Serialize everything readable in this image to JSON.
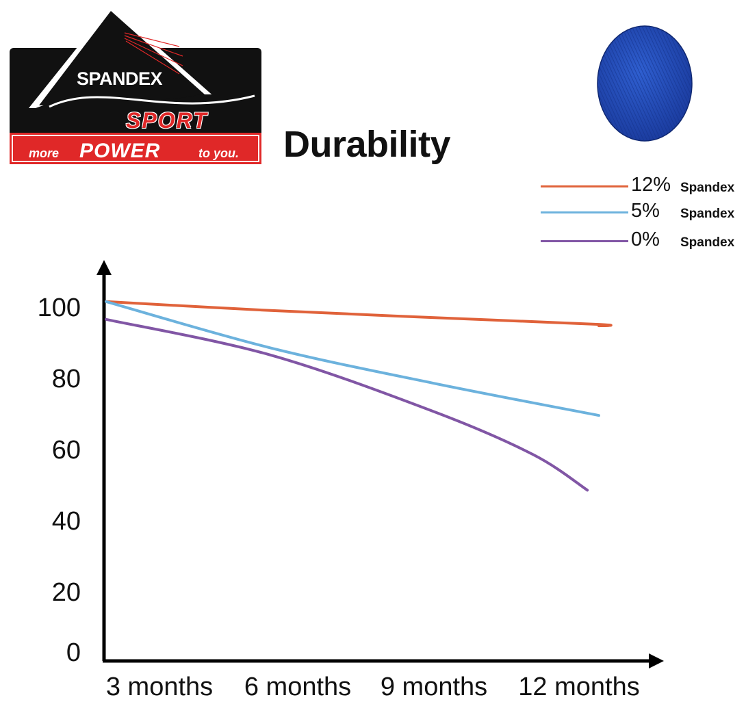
{
  "logo": {
    "brand": "SPANDEX",
    "sub": "SPORT",
    "tagline_a": "more",
    "tagline_b": "POWER",
    "tagline_c": "to you.",
    "colors": {
      "panel": "#111111",
      "band": "#e02828",
      "accent": "#e02828"
    }
  },
  "title": "Durability",
  "swatch": {
    "color": "#1d46b8",
    "icon": "fabric-swatch"
  },
  "chart_data": {
    "type": "line",
    "title": "Durability",
    "categories": [
      "3 months",
      "6 months",
      "9 months",
      "12 months"
    ],
    "x_positions": [
      0,
      1,
      2,
      3
    ],
    "yticks": [
      0,
      20,
      40,
      60,
      80,
      100
    ],
    "ylim": [
      0,
      100
    ],
    "grid": false,
    "legend_position": "top-right",
    "series": [
      {
        "name": "12%",
        "name_suffix": "Spandex",
        "color": "#e0623a",
        "x": [
          0,
          1,
          2,
          3,
          3.0
        ],
        "y": [
          101,
          98.5,
          96.5,
          94.6,
          94.2
        ]
      },
      {
        "name": "5%",
        "name_suffix": "Spandex",
        "color": "#6cb2dd",
        "x": [
          0,
          1,
          2,
          3,
          3.0
        ],
        "y": [
          101,
          88,
          78,
          69,
          69
        ]
      },
      {
        "name": "0%",
        "name_suffix": "Spandex",
        "color": "#8156a5",
        "x": [
          0,
          1,
          2,
          2.6,
          2.93
        ],
        "y": [
          96,
          86,
          70,
          58,
          48
        ]
      }
    ]
  }
}
